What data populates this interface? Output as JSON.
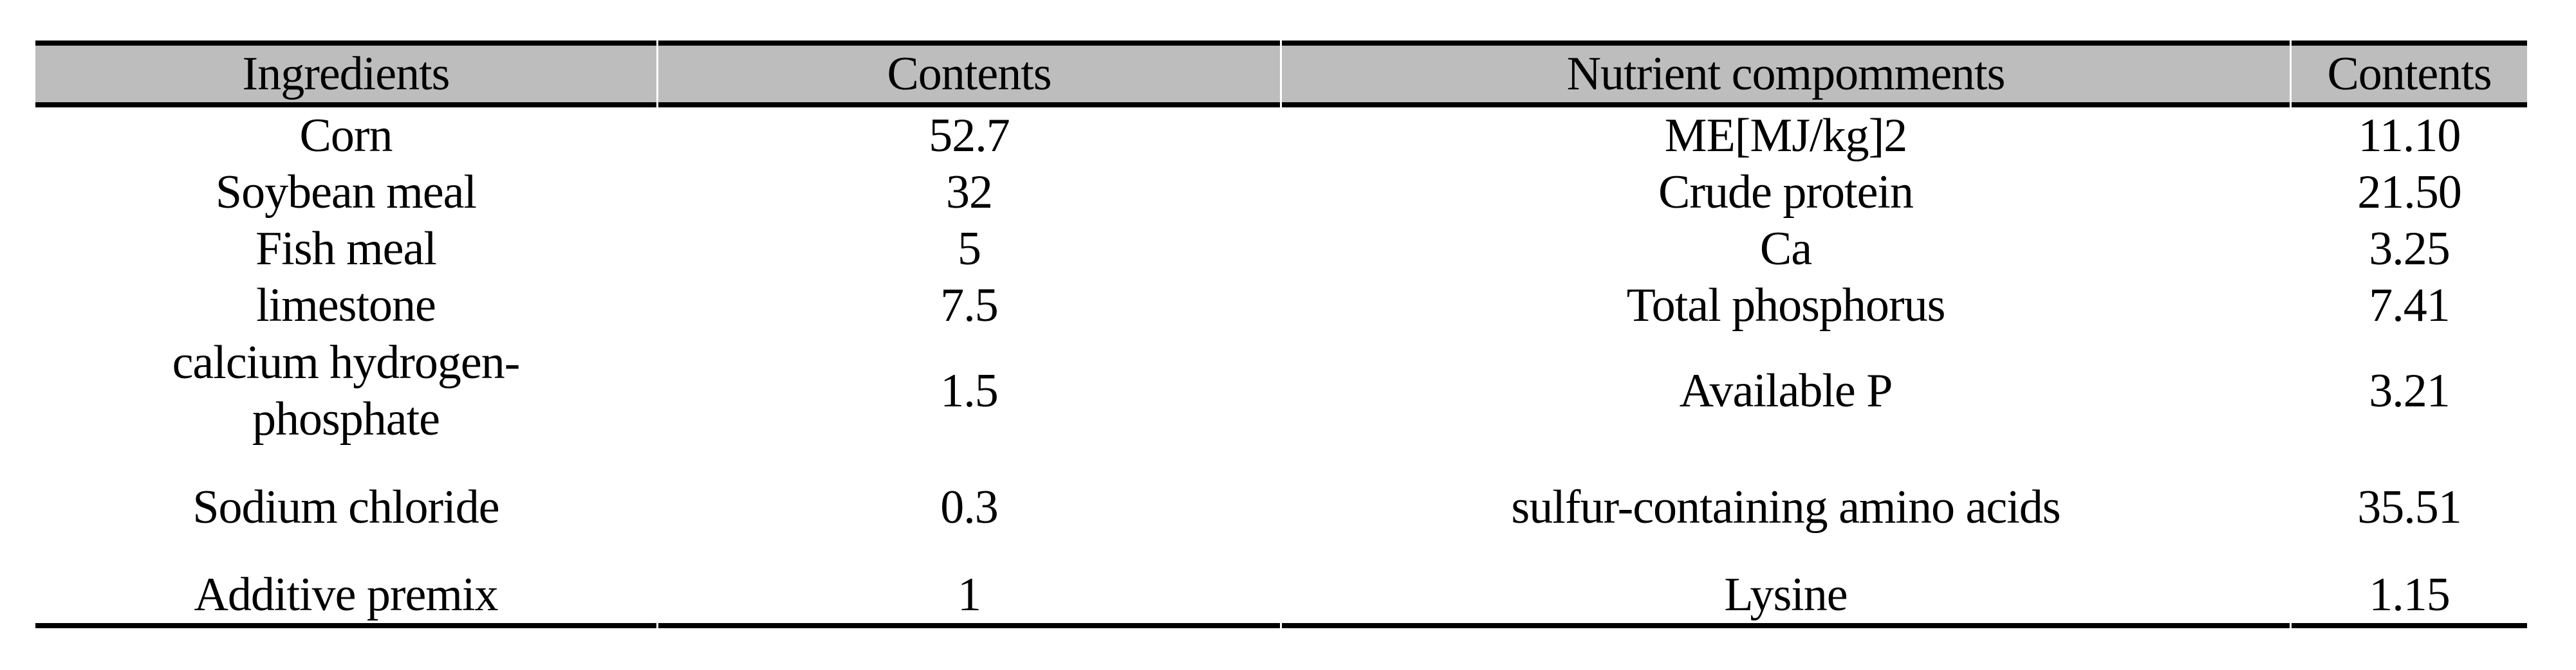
{
  "header": {
    "ingredients": "Ingredients",
    "ingredients_contents": "Contents",
    "nutrients": "Nutrient compomments",
    "nutrients_contents": "Contents"
  },
  "rows": [
    {
      "ingredient": "Corn",
      "amount": "52.7",
      "nutrient": "ME[MJ/kg]2",
      "value": "11.10"
    },
    {
      "ingredient": "Soybean meal",
      "amount": "32",
      "nutrient": "Crude protein",
      "value": "21.50"
    },
    {
      "ingredient": "Fish meal",
      "amount": "5",
      "nutrient": "Ca",
      "value": "3.25"
    },
    {
      "ingredient": "limestone",
      "amount": "7.5",
      "nutrient": "Total phosphorus",
      "value": "7.41"
    },
    {
      "ingredient": "calcium hydrogen-\nphosphate",
      "amount": "1.5",
      "nutrient": "Available P",
      "value": "3.21"
    },
    {
      "ingredient": "Sodium chloride",
      "amount": "0.3",
      "nutrient": "sulfur-containing amino acids",
      "value": "35.51"
    },
    {
      "ingredient": "Additive premix",
      "amount": "1",
      "nutrient": "Lysine",
      "value": "1.15"
    }
  ],
  "colors": {
    "header_bg": "#bdbdbd",
    "border": "#000000",
    "text": "#000000",
    "page_bg": "#ffffff"
  }
}
